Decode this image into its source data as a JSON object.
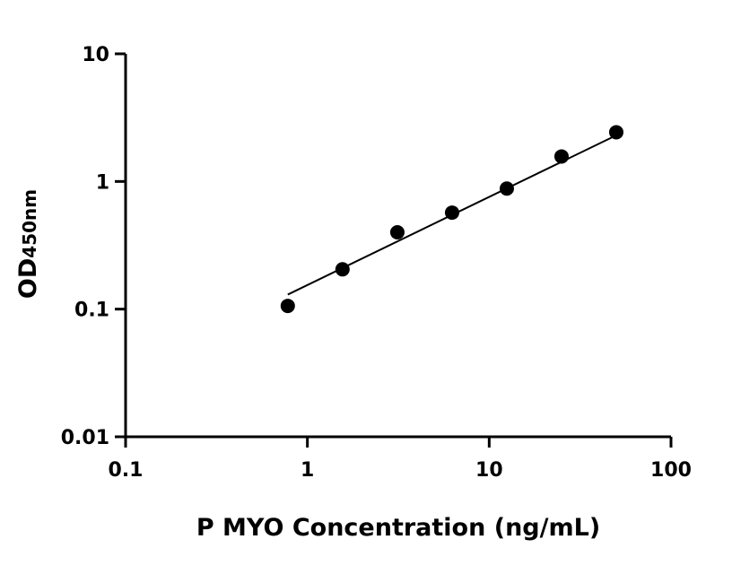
{
  "chart_data": {
    "type": "scatter",
    "title": "",
    "xlabel": "P MYO Concentration (ng/mL)",
    "ylabel": "OD",
    "ylabel_subscript": "450nm",
    "xscale": "log",
    "yscale": "log",
    "xlim": [
      0.1,
      100
    ],
    "ylim": [
      0.01,
      10
    ],
    "xticks": [
      0.1,
      1,
      10,
      100
    ],
    "xtick_labels": [
      "0.1",
      "1",
      "10",
      "100"
    ],
    "yticks": [
      0.01,
      0.1,
      1,
      10
    ],
    "ytick_labels": [
      "0.01",
      "0.1",
      "1",
      "10"
    ],
    "grid": false,
    "point_color": "#000000",
    "series": [
      {
        "x": [
          0.78,
          1.56,
          3.125,
          6.25,
          12.5,
          25,
          50
        ],
        "y": [
          0.106,
          0.205,
          0.4,
          0.57,
          0.88,
          1.57,
          2.43
        ]
      }
    ],
    "fit_line": {
      "x": [
        0.78,
        50
      ],
      "y": [
        0.13,
        2.3
      ]
    }
  }
}
